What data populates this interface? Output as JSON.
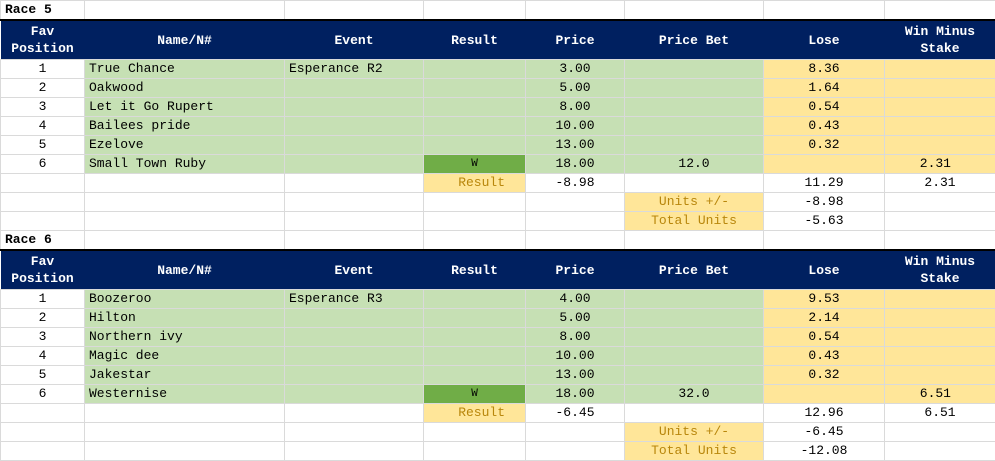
{
  "headers": [
    "Fav\nPosition",
    "Name/N#",
    "Event",
    "Result",
    "Price",
    "Price Bet",
    "Lose",
    "Win Minus\nStake"
  ],
  "labels": {
    "result": "Result",
    "units": "Units +/-",
    "total": "Total Units"
  },
  "colors": {
    "header": "#002060",
    "green": "#c6e0b4",
    "yellow": "#ffe699",
    "win": "#70ad47"
  },
  "races": [
    {
      "title": "Race 5",
      "event": "Esperance R2",
      "runners": [
        {
          "pos": "1",
          "name": "True Chance",
          "result": "",
          "price": "3.00",
          "bet": "",
          "lose": "8.36",
          "win": ""
        },
        {
          "pos": "2",
          "name": "Oakwood",
          "result": "",
          "price": "5.00",
          "bet": "",
          "lose": "1.64",
          "win": ""
        },
        {
          "pos": "3",
          "name": "Let it Go Rupert",
          "result": "",
          "price": "8.00",
          "bet": "",
          "lose": "0.54",
          "win": ""
        },
        {
          "pos": "4",
          "name": "Bailees pride",
          "result": "",
          "price": "10.00",
          "bet": "",
          "lose": "0.43",
          "win": ""
        },
        {
          "pos": "5",
          "name": "Ezelove",
          "result": "",
          "price": "13.00",
          "bet": "",
          "lose": "0.32",
          "win": ""
        },
        {
          "pos": "6",
          "name": "Small Town Ruby",
          "result": "W",
          "price": "18.00",
          "bet": "12.0",
          "lose": "",
          "win": "2.31"
        }
      ],
      "result_value": "-8.98",
      "lose_total": "11.29",
      "win_total": "2.31",
      "units": "-8.98",
      "total_units": "-5.63"
    },
    {
      "title": "Race 6",
      "event": "Esperance R3",
      "runners": [
        {
          "pos": "1",
          "name": "Boozeroo",
          "result": "",
          "price": "4.00",
          "bet": "",
          "lose": "9.53",
          "win": ""
        },
        {
          "pos": "2",
          "name": "Hilton",
          "result": "",
          "price": "5.00",
          "bet": "",
          "lose": "2.14",
          "win": ""
        },
        {
          "pos": "3",
          "name": "Northern ivy",
          "result": "",
          "price": "8.00",
          "bet": "",
          "lose": "0.54",
          "win": ""
        },
        {
          "pos": "4",
          "name": "Magic dee",
          "result": "",
          "price": "10.00",
          "bet": "",
          "lose": "0.43",
          "win": ""
        },
        {
          "pos": "5",
          "name": "Jakestar",
          "result": "",
          "price": "13.00",
          "bet": "",
          "lose": "0.32",
          "win": ""
        },
        {
          "pos": "6",
          "name": "Westernise",
          "result": "W",
          "price": "18.00",
          "bet": "32.0",
          "lose": "",
          "win": "6.51"
        }
      ],
      "result_value": "-6.45",
      "lose_total": "12.96",
      "win_total": "6.51",
      "units": "-6.45",
      "total_units": "-12.08"
    }
  ]
}
